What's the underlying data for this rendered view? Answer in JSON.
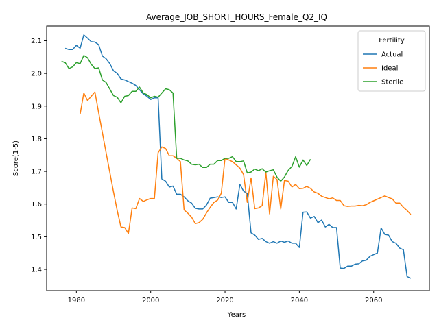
{
  "chart_data": {
    "type": "line",
    "title": "Average_JOB_SHORT_HOURS_Female_Q2_IQ",
    "xlabel": "Years",
    "ylabel": "Score(1-5)",
    "xlim": [
      1972,
      2075
    ],
    "ylim": [
      1.335,
      2.145
    ],
    "xticks": [
      1980,
      2000,
      2020,
      2040,
      2060
    ],
    "yticks": [
      1.4,
      1.5,
      1.6,
      1.7,
      1.8,
      1.9,
      2.0,
      2.1
    ],
    "ytick_labels": [
      "1.4",
      "1.5",
      "1.6",
      "1.7",
      "1.8",
      "1.9",
      "2.0",
      "2.1"
    ],
    "grid": false,
    "legend": {
      "title": "Fertility",
      "position": "top-right"
    },
    "series": [
      {
        "name": "Actual",
        "color": "#1f77b4",
        "x": [
          1977,
          1978,
          1979,
          1980,
          1981,
          1982,
          1983,
          1984,
          1985,
          1986,
          1987,
          1988,
          1989,
          1990,
          1991,
          1992,
          1993,
          1994,
          1995,
          1996,
          1997,
          1998,
          1999,
          2000,
          2001,
          2002,
          2003,
          2004,
          2005,
          2006,
          2007,
          2008,
          2009,
          2010,
          2011,
          2012,
          2013,
          2014,
          2015,
          2016,
          2017,
          2018,
          2019,
          2020,
          2021,
          2022,
          2023,
          2024,
          2025,
          2026,
          2027,
          2028,
          2029,
          2030,
          2031,
          2032,
          2033,
          2034,
          2035,
          2036,
          2037,
          2038,
          2039,
          2040,
          2041,
          2042,
          2043,
          2044,
          2045,
          2046,
          2047,
          2048,
          2049,
          2050,
          2051,
          2052,
          2053,
          2054,
          2055,
          2056,
          2057,
          2058,
          2059,
          2060,
          2061,
          2062,
          2063,
          2064,
          2065,
          2066,
          2067,
          2068,
          2069,
          2070
        ],
        "values": [
          2.077,
          2.073,
          2.073,
          2.086,
          2.077,
          2.118,
          2.108,
          2.097,
          2.096,
          2.088,
          2.053,
          2.045,
          2.03,
          2.008,
          2.0,
          1.983,
          1.98,
          1.975,
          1.97,
          1.963,
          1.95,
          1.937,
          1.93,
          1.92,
          1.925,
          1.925,
          1.677,
          1.67,
          1.652,
          1.655,
          1.63,
          1.63,
          1.622,
          1.61,
          1.603,
          1.587,
          1.585,
          1.585,
          1.597,
          1.618,
          1.62,
          1.622,
          1.62,
          1.622,
          1.605,
          1.605,
          1.585,
          1.66,
          1.64,
          1.632,
          1.512,
          1.505,
          1.492,
          1.495,
          1.485,
          1.48,
          1.485,
          1.48,
          1.487,
          1.483,
          1.487,
          1.48,
          1.48,
          1.467,
          1.575,
          1.576,
          1.557,
          1.562,
          1.543,
          1.551,
          1.53,
          1.538,
          1.528,
          1.528,
          1.404,
          1.403,
          1.41,
          1.41,
          1.416,
          1.417,
          1.426,
          1.428,
          1.44,
          1.445,
          1.45,
          1.527,
          1.507,
          1.505,
          1.485,
          1.48,
          1.465,
          1.46,
          1.378,
          1.373
        ]
      },
      {
        "name": "Ideal",
        "color": "#ff7f0e",
        "x": [
          1981,
          1982,
          1983,
          1984,
          1985,
          1986,
          1987,
          1988,
          1989,
          1990,
          1991,
          1992,
          1993,
          1994,
          1995,
          1996,
          1997,
          1998,
          1999,
          2000,
          2001,
          2002,
          2003,
          2004,
          2005,
          2006,
          2007,
          2008,
          2009,
          2010,
          2011,
          2012,
          2013,
          2014,
          2015,
          2016,
          2017,
          2018,
          2019,
          2020,
          2021,
          2022,
          2023,
          2024,
          2025,
          2026,
          2027,
          2028,
          2029,
          2030,
          2031,
          2032,
          2033,
          2034,
          2035,
          2036,
          2037,
          2038,
          2039,
          2040,
          2041,
          2042,
          2043,
          2044,
          2045,
          2046,
          2047,
          2048,
          2049,
          2050,
          2051,
          2052,
          2053,
          2054,
          2055,
          2056,
          2057,
          2058,
          2059,
          2060,
          2061,
          2062,
          2063,
          2064,
          2065,
          2066,
          2067,
          2068,
          2069,
          2070
        ],
        "values": [
          1.875,
          1.94,
          1.917,
          1.93,
          1.943,
          1.88,
          1.818,
          1.757,
          1.697,
          1.637,
          1.58,
          1.53,
          1.528,
          1.51,
          1.588,
          1.586,
          1.617,
          1.608,
          1.613,
          1.617,
          1.617,
          1.757,
          1.775,
          1.77,
          1.748,
          1.748,
          1.74,
          1.73,
          1.582,
          1.572,
          1.56,
          1.54,
          1.543,
          1.553,
          1.573,
          1.59,
          1.605,
          1.612,
          1.633,
          1.74,
          1.735,
          1.73,
          1.72,
          1.71,
          1.69,
          1.605,
          1.68,
          1.586,
          1.588,
          1.595,
          1.697,
          1.57,
          1.685,
          1.675,
          1.585,
          1.672,
          1.67,
          1.652,
          1.66,
          1.647,
          1.648,
          1.654,
          1.648,
          1.637,
          1.633,
          1.624,
          1.62,
          1.616,
          1.619,
          1.611,
          1.611,
          1.595,
          1.593,
          1.594,
          1.594,
          1.596,
          1.595,
          1.598,
          1.605,
          1.61,
          1.615,
          1.62,
          1.625,
          1.62,
          1.616,
          1.603,
          1.603,
          1.59,
          1.58,
          1.568
        ]
      },
      {
        "name": "Sterile",
        "color": "#2ca02c",
        "x": [
          1976,
          1977,
          1978,
          1979,
          1980,
          1981,
          1982,
          1983,
          1984,
          1985,
          1986,
          1987,
          1988,
          1989,
          1990,
          1991,
          1992,
          1993,
          1994,
          1995,
          1996,
          1997,
          1998,
          1999,
          2000,
          2001,
          2002,
          2003,
          2004,
          2005,
          2006,
          2007,
          2008,
          2009,
          2010,
          2011,
          2012,
          2013,
          2014,
          2015,
          2016,
          2017,
          2018,
          2019,
          2020,
          2021,
          2022,
          2023,
          2024,
          2025,
          2026,
          2027,
          2028,
          2029,
          2030,
          2031,
          2032,
          2033,
          2034,
          2035,
          2036,
          2037,
          2038,
          2039,
          2040,
          2041,
          2042,
          2043
        ],
        "values": [
          2.037,
          2.033,
          2.015,
          2.02,
          2.033,
          2.03,
          2.055,
          2.048,
          2.028,
          2.015,
          2.017,
          1.98,
          1.972,
          1.952,
          1.932,
          1.927,
          1.91,
          1.93,
          1.932,
          1.945,
          1.945,
          1.958,
          1.94,
          1.935,
          1.925,
          1.93,
          1.927,
          1.94,
          1.953,
          1.95,
          1.94,
          1.74,
          1.74,
          1.735,
          1.732,
          1.722,
          1.72,
          1.722,
          1.712,
          1.712,
          1.722,
          1.722,
          1.733,
          1.733,
          1.74,
          1.74,
          1.745,
          1.73,
          1.73,
          1.732,
          1.695,
          1.698,
          1.707,
          1.702,
          1.708,
          1.698,
          1.702,
          1.705,
          1.682,
          1.67,
          1.683,
          1.703,
          1.715,
          1.745,
          1.713,
          1.735,
          1.718,
          1.737
        ]
      }
    ]
  }
}
